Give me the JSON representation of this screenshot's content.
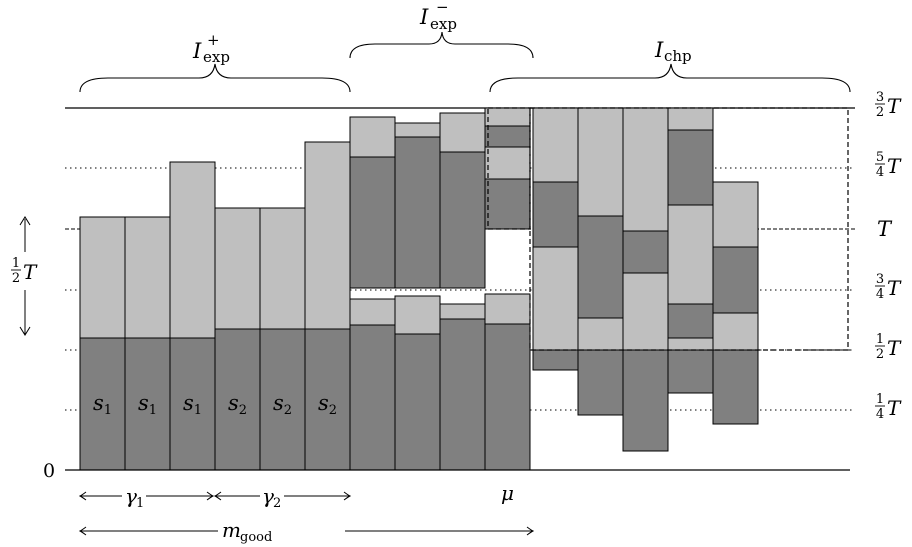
{
  "regions": {
    "i_exp_plus": "I+exp",
    "i_exp_minus": "I−exp",
    "i_chp": "Ichp"
  },
  "levels": {
    "three_halves_T": "3/2 T",
    "five_quarters_T": "5/4 T",
    "T": "T",
    "three_quarters_T": "3/4 T",
    "half_T": "1/2 T",
    "quarter_T": "1/4 T",
    "zero": "0"
  },
  "side_marker": "1/2 T",
  "job_labels": [
    "s1",
    "s1",
    "s1",
    "s2",
    "s2",
    "s2"
  ],
  "bottom": {
    "gamma1": "γ1",
    "gamma2": "γ2",
    "mu": "μ",
    "m_good": "mgood"
  },
  "colors": {
    "dark": "#808080",
    "light": "#bfbfbf",
    "stroke": "#000000"
  }
}
